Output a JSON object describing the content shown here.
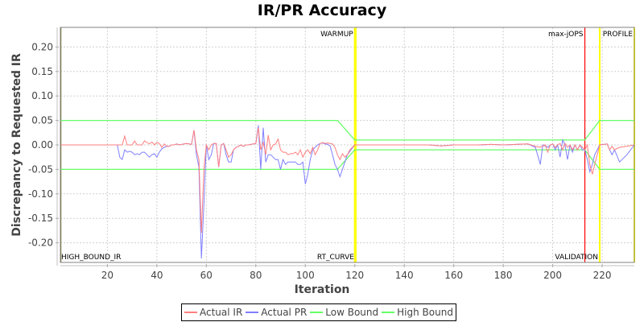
{
  "chart_data": {
    "type": "line",
    "title": "IR/PR Accuracy",
    "xlabel": "Iteration",
    "ylabel": "Discrepancy to Requested IR",
    "xlim": [
      1,
      233
    ],
    "ylim": [
      -0.235,
      0.24
    ],
    "grid": true,
    "legend_position": "bottom",
    "x_ticks": [
      20,
      40,
      60,
      80,
      100,
      120,
      140,
      160,
      180,
      200,
      220
    ],
    "y_ticks": [
      0.2,
      0.15,
      0.1,
      0.05,
      0.0,
      -0.05,
      -0.1,
      -0.15,
      -0.2
    ],
    "y_tick_labels": [
      "0.20",
      "0.15",
      "0.10",
      "0.05",
      "0.00",
      "-0.05",
      "-0.10",
      "-0.15",
      "-0.20"
    ],
    "series": [
      {
        "name": "Actual IR",
        "color": "#ff7f7f",
        "points": [
          [
            1,
            0
          ],
          [
            24,
            0
          ],
          [
            25,
            0
          ],
          [
            26,
            0
          ],
          [
            27,
            0.018
          ],
          [
            28,
            0
          ],
          [
            29,
            0
          ],
          [
            30,
            0
          ],
          [
            31,
            0.008
          ],
          [
            32,
            0
          ],
          [
            33,
            0
          ],
          [
            34,
            0
          ],
          [
            35,
            0.008
          ],
          [
            36,
            0.005
          ],
          [
            37,
            0.002
          ],
          [
            38,
            0.006
          ],
          [
            39,
            0
          ],
          [
            40,
            0.005
          ],
          [
            41,
            0.003
          ],
          [
            42,
            -0.005
          ],
          [
            43,
            0.002
          ],
          [
            44,
            -0.003
          ],
          [
            45,
            -0.003
          ],
          [
            46,
            0
          ],
          [
            47,
            0
          ],
          [
            48,
            0.002
          ],
          [
            49,
            0
          ],
          [
            50,
            0.001
          ],
          [
            51,
            0.002
          ],
          [
            52,
            0.003
          ],
          [
            53,
            0.002
          ],
          [
            54,
            0.001
          ],
          [
            55,
            0.03
          ],
          [
            56,
            -0.01
          ],
          [
            57,
            -0.03
          ],
          [
            58,
            -0.18
          ],
          [
            59,
            -0.05
          ],
          [
            60,
            0
          ],
          [
            61,
            -0.01
          ],
          [
            62,
            0
          ],
          [
            63,
            0.003
          ],
          [
            64,
            0.003
          ],
          [
            65,
            -0.045
          ],
          [
            66,
            0
          ],
          [
            67,
            0.003
          ],
          [
            68,
            -0.01
          ],
          [
            69,
            -0.025
          ],
          [
            70,
            -0.02
          ],
          [
            71,
            -0.01
          ],
          [
            72,
            -0.005
          ],
          [
            73,
            -0.003
          ],
          [
            74,
            0
          ],
          [
            75,
            -0.003
          ],
          [
            76,
            0
          ],
          [
            77,
            0
          ],
          [
            78,
            0.001
          ],
          [
            79,
            0.002
          ],
          [
            80,
            0.003
          ],
          [
            81,
            0.035
          ],
          [
            82,
            -0.01
          ],
          [
            83,
            0.005
          ],
          [
            84,
            -0.02
          ],
          [
            85,
            0.02
          ],
          [
            86,
            -0.01
          ],
          [
            87,
            0
          ],
          [
            88,
            0.002
          ],
          [
            89,
            0.012
          ],
          [
            90,
            -0.01
          ],
          [
            91,
            -0.015
          ],
          [
            92,
            -0.015
          ],
          [
            93,
            -0.02
          ],
          [
            94,
            -0.018
          ],
          [
            95,
            -0.018
          ],
          [
            96,
            -0.015
          ],
          [
            97,
            -0.02
          ],
          [
            98,
            -0.01
          ],
          [
            99,
            -0.025
          ],
          [
            100,
            -0.015
          ],
          [
            101,
            -0.01
          ],
          [
            102,
            -0.018
          ],
          [
            103,
            -0.005
          ],
          [
            104,
            -0.02
          ],
          [
            105,
            -0.01
          ],
          [
            106,
            0.003
          ],
          [
            107,
            0.005
          ],
          [
            108,
            0.003
          ],
          [
            109,
            0.004
          ],
          [
            110,
            0.003
          ],
          [
            111,
            0.002
          ],
          [
            112,
            -0.005
          ],
          [
            113,
            -0.02
          ],
          [
            114,
            -0.03
          ],
          [
            115,
            -0.018
          ],
          [
            116,
            -0.025
          ],
          [
            117,
            -0.02
          ],
          [
            118,
            -0.01
          ],
          [
            120,
            0
          ],
          [
            150,
            0
          ],
          [
            155,
            -0.002
          ],
          [
            160,
            0
          ],
          [
            170,
            0
          ],
          [
            175,
            0.001
          ],
          [
            180,
            0
          ],
          [
            185,
            0.001
          ],
          [
            190,
            0.002
          ],
          [
            193,
            -0.003
          ],
          [
            195,
            -0.005
          ],
          [
            197,
            0
          ],
          [
            198,
            -0.015
          ],
          [
            199,
            0
          ],
          [
            200,
            0.002
          ],
          [
            201,
            -0.005
          ],
          [
            202,
            0
          ],
          [
            203,
            0.003
          ],
          [
            204,
            -0.01
          ],
          [
            205,
            0.003
          ],
          [
            206,
            -0.005
          ],
          [
            207,
            0
          ],
          [
            208,
            -0.01
          ],
          [
            209,
            0
          ],
          [
            210,
            -0.01
          ],
          [
            211,
            0
          ],
          [
            212,
            -0.005
          ],
          [
            213,
            -0.01
          ],
          [
            214,
            0
          ],
          [
            215,
            -0.04
          ],
          [
            216,
            -0.06
          ],
          [
            217,
            -0.04
          ],
          [
            218,
            -0.02
          ],
          [
            219,
            0
          ],
          [
            222,
            0.002
          ],
          [
            223,
            -0.01
          ],
          [
            224,
            -0.003
          ],
          [
            225,
            -0.01
          ],
          [
            227,
            -0.005
          ],
          [
            230,
            -0.003
          ],
          [
            233,
            0
          ]
        ]
      },
      {
        "name": "Actual PR",
        "color": "#7f7fff",
        "points": [
          [
            1,
            0
          ],
          [
            24,
            0
          ],
          [
            25,
            -0.025
          ],
          [
            26,
            -0.03
          ],
          [
            27,
            -0.01
          ],
          [
            28,
            -0.015
          ],
          [
            29,
            -0.013
          ],
          [
            30,
            -0.015
          ],
          [
            31,
            -0.02
          ],
          [
            32,
            -0.018
          ],
          [
            33,
            -0.02
          ],
          [
            34,
            -0.015
          ],
          [
            35,
            -0.015
          ],
          [
            36,
            -0.02
          ],
          [
            37,
            -0.025
          ],
          [
            38,
            -0.02
          ],
          [
            39,
            -0.018
          ],
          [
            40,
            -0.025
          ],
          [
            41,
            -0.015
          ],
          [
            42,
            -0.008
          ],
          [
            43,
            -0.005
          ],
          [
            44,
            -0.003
          ],
          [
            45,
            -0.003
          ],
          [
            46,
            0
          ],
          [
            47,
            0
          ],
          [
            48,
            0.002
          ],
          [
            49,
            0
          ],
          [
            50,
            0.001
          ],
          [
            51,
            0.002
          ],
          [
            52,
            0.003
          ],
          [
            53,
            0.002
          ],
          [
            54,
            0.001
          ],
          [
            55,
            0.03
          ],
          [
            56,
            -0.02
          ],
          [
            57,
            -0.045
          ],
          [
            58,
            -0.232
          ],
          [
            59,
            -0.12
          ],
          [
            60,
            0
          ],
          [
            61,
            -0.03
          ],
          [
            62,
            -0.02
          ],
          [
            63,
            0.003
          ],
          [
            64,
            0.003
          ],
          [
            65,
            -0.045
          ],
          [
            66,
            0
          ],
          [
            67,
            0.003
          ],
          [
            68,
            -0.02
          ],
          [
            69,
            -0.035
          ],
          [
            70,
            -0.035
          ],
          [
            71,
            -0.01
          ],
          [
            72,
            -0.005
          ],
          [
            73,
            -0.003
          ],
          [
            74,
            0
          ],
          [
            75,
            -0.003
          ],
          [
            76,
            0
          ],
          [
            77,
            0
          ],
          [
            78,
            0.001
          ],
          [
            79,
            0.002
          ],
          [
            80,
            0.003
          ],
          [
            81,
            0.04
          ],
          [
            82,
            -0.05
          ],
          [
            83,
            0.035
          ],
          [
            84,
            -0.035
          ],
          [
            85,
            -0.02
          ],
          [
            86,
            -0.02
          ],
          [
            87,
            -0.025
          ],
          [
            88,
            -0.03
          ],
          [
            89,
            -0.03
          ],
          [
            90,
            -0.05
          ],
          [
            91,
            -0.03
          ],
          [
            92,
            -0.04
          ],
          [
            93,
            -0.035
          ],
          [
            94,
            -0.035
          ],
          [
            95,
            -0.035
          ],
          [
            96,
            -0.035
          ],
          [
            97,
            -0.04
          ],
          [
            98,
            -0.04
          ],
          [
            99,
            -0.035
          ],
          [
            100,
            -0.08
          ],
          [
            101,
            -0.06
          ],
          [
            102,
            -0.03
          ],
          [
            103,
            -0.01
          ],
          [
            104,
            -0.005
          ],
          [
            105,
            0
          ],
          [
            106,
            0.003
          ],
          [
            107,
            0.004
          ],
          [
            108,
            0.002
          ],
          [
            109,
            0.001
          ],
          [
            110,
            -0.002
          ],
          [
            111,
            -0.02
          ],
          [
            112,
            -0.04
          ],
          [
            113,
            -0.05
          ],
          [
            114,
            -0.065
          ],
          [
            115,
            -0.05
          ],
          [
            116,
            -0.035
          ],
          [
            117,
            -0.02
          ],
          [
            120,
            0
          ],
          [
            150,
            0
          ],
          [
            155,
            -0.002
          ],
          [
            160,
            0
          ],
          [
            170,
            0
          ],
          [
            175,
            0.001
          ],
          [
            180,
            0
          ],
          [
            185,
            0.001
          ],
          [
            190,
            0.002
          ],
          [
            193,
            -0.005
          ],
          [
            195,
            -0.04
          ],
          [
            196,
            0
          ],
          [
            198,
            -0.005
          ],
          [
            199,
            0
          ],
          [
            200,
            0.002
          ],
          [
            201,
            -0.01
          ],
          [
            202,
            0
          ],
          [
            203,
            -0.025
          ],
          [
            204,
            0.01
          ],
          [
            205,
            0
          ],
          [
            206,
            -0.03
          ],
          [
            207,
            0
          ],
          [
            208,
            -0.015
          ],
          [
            209,
            0
          ],
          [
            210,
            -0.01
          ],
          [
            211,
            0
          ],
          [
            212,
            -0.01
          ],
          [
            213,
            -0.01
          ],
          [
            214,
            -0.03
          ],
          [
            215,
            -0.055
          ],
          [
            216,
            -0.04
          ],
          [
            217,
            -0.02
          ],
          [
            219,
            0
          ],
          [
            222,
            0.002
          ],
          [
            223,
            -0.01
          ],
          [
            224,
            -0.02
          ],
          [
            225,
            -0.01
          ],
          [
            227,
            -0.035
          ],
          [
            230,
            -0.02
          ],
          [
            233,
            0
          ]
        ]
      },
      {
        "name": "Low Bound",
        "color": "#66ff66",
        "points": [
          [
            1,
            -0.05
          ],
          [
            113,
            -0.05
          ],
          [
            120,
            -0.01
          ],
          [
            213,
            -0.01
          ],
          [
            219,
            -0.05
          ],
          [
            233,
            -0.05
          ]
        ]
      },
      {
        "name": "High Bound",
        "color": "#66ff66",
        "points": [
          [
            1,
            0.05
          ],
          [
            113,
            0.05
          ],
          [
            120,
            0.01
          ],
          [
            213,
            0.01
          ],
          [
            219,
            0.05
          ],
          [
            233,
            0.05
          ]
        ]
      }
    ],
    "markers": [
      {
        "x": 120,
        "label": "WARMUP",
        "color": "#ffff00",
        "label_position": "top"
      },
      {
        "x": 120.4,
        "label": "RT_CURVE",
        "color": "#ffff00",
        "label_position": "bottom"
      },
      {
        "x": 213,
        "label": "max-jOPS",
        "color": "#ff0000",
        "label_position": "top"
      },
      {
        "x": 219,
        "label": "VALIDATION",
        "color": "#ffff00",
        "label_position": "bottom"
      },
      {
        "x": 233,
        "label": "PROFILE",
        "color": "#ffff00",
        "label_position": "top"
      },
      {
        "x": 1,
        "label": "HIGH_BOUND_IR",
        "color": "#808040",
        "label_position": "bottom-left"
      }
    ]
  },
  "legend": {
    "items": [
      {
        "label": "Actual IR",
        "color": "#ff7f7f"
      },
      {
        "label": "Actual PR",
        "color": "#7f7fff"
      },
      {
        "label": "Low Bound",
        "color": "#66ff66"
      },
      {
        "label": "High Bound",
        "color": "#66ff66"
      }
    ]
  }
}
